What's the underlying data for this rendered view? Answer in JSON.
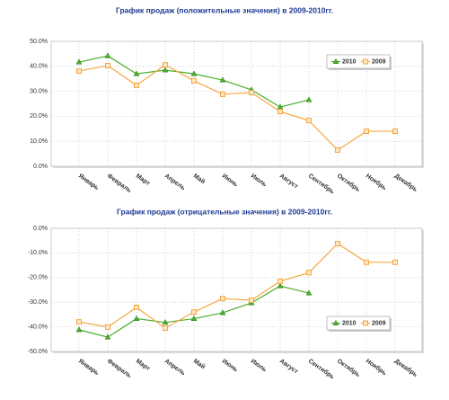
{
  "chart_data": [
    {
      "type": "line",
      "title": "График продаж (положительные значения) в 2009-2010гг.",
      "categories": [
        "Январь",
        "Февраль",
        "Март",
        "Апрель",
        "Май",
        "Июнь",
        "Июль",
        "Август",
        "Сентябрь",
        "Октябрь",
        "Ноябрь",
        "Декабрь"
      ],
      "series": [
        {
          "name": "2010",
          "color": "#4cae2c",
          "marker": "triangle",
          "values": [
            41.7,
            44.2,
            37,
            38.5,
            37,
            34.5,
            30.6,
            23.7,
            26.6,
            null,
            null,
            null
          ]
        },
        {
          "name": "2009",
          "color": "#f5a640",
          "marker": "square",
          "values": [
            38.1,
            40.3,
            32.4,
            40.6,
            34.2,
            28.8,
            29.5,
            21.9,
            18.3,
            6.5,
            14,
            14
          ]
        }
      ],
      "ylim": [
        0,
        50
      ],
      "yticks": [
        {
          "value": 0,
          "label": "0.0%"
        },
        {
          "value": 10,
          "label": "10.0%"
        },
        {
          "value": 20,
          "label": "20.0%"
        },
        {
          "value": 30,
          "label": "30.0%"
        },
        {
          "value": 40,
          "label": "40.0%"
        },
        {
          "value": 50,
          "label": "50.0%"
        }
      ],
      "grid": true,
      "legend": "upper right"
    },
    {
      "type": "line",
      "title": "График продаж (отрицательные значения) в 2009-2010гг.",
      "categories": [
        "Январь",
        "Февраль",
        "Март",
        "Апрель",
        "Май",
        "Июнь",
        "Июль",
        "Август",
        "Сентябрь",
        "Октябрь",
        "Ноябрь",
        "Декабрь"
      ],
      "series": [
        {
          "name": "2010",
          "color": "#4cae2c",
          "marker": "triangle",
          "values": [
            -41.2,
            -44.2,
            -36.7,
            -38.2,
            -36.7,
            -34.3,
            -30.3,
            -23.4,
            -26.3,
            null,
            null,
            null
          ]
        },
        {
          "name": "2009",
          "color": "#f5a640",
          "marker": "square",
          "values": [
            -38,
            -40.1,
            -32.1,
            -40.5,
            -34,
            -28.5,
            -29.2,
            -21.5,
            -18,
            -6.2,
            -13.8,
            -13.8
          ]
        }
      ],
      "ylim": [
        -50,
        0
      ],
      "yticks": [
        {
          "value": -50,
          "label": "-50.0%"
        },
        {
          "value": -40,
          "label": "-40.0%"
        },
        {
          "value": -30,
          "label": "-30.0%"
        },
        {
          "value": -20,
          "label": "-20.0%"
        },
        {
          "value": -10,
          "label": "-10.0%"
        },
        {
          "value": 0,
          "label": "0.0%"
        }
      ],
      "grid": true,
      "legend": "lower right"
    }
  ]
}
